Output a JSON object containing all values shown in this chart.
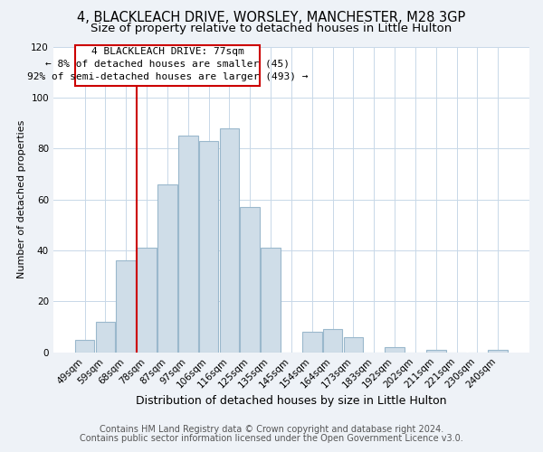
{
  "title": "4, BLACKLEACH DRIVE, WORSLEY, MANCHESTER, M28 3GP",
  "subtitle": "Size of property relative to detached houses in Little Hulton",
  "xlabel": "Distribution of detached houses by size in Little Hulton",
  "ylabel": "Number of detached properties",
  "footer_line1": "Contains HM Land Registry data © Crown copyright and database right 2024.",
  "footer_line2": "Contains public sector information licensed under the Open Government Licence v3.0.",
  "bar_labels": [
    "49sqm",
    "59sqm",
    "68sqm",
    "78sqm",
    "87sqm",
    "97sqm",
    "106sqm",
    "116sqm",
    "125sqm",
    "135sqm",
    "145sqm",
    "154sqm",
    "164sqm",
    "173sqm",
    "183sqm",
    "192sqm",
    "202sqm",
    "211sqm",
    "221sqm",
    "230sqm",
    "240sqm"
  ],
  "bar_values": [
    5,
    12,
    36,
    41,
    66,
    85,
    83,
    88,
    57,
    41,
    0,
    8,
    9,
    6,
    0,
    2,
    0,
    1,
    0,
    0,
    1
  ],
  "bar_color": "#cfdde8",
  "bar_edge_color": "#9ab8cc",
  "vline_index": 3,
  "vline_color": "#cc0000",
  "annotation_line1": "4 BLACKLEACH DRIVE: 77sqm",
  "annotation_line2": "← 8% of detached houses are smaller (45)",
  "annotation_line3": "92% of semi-detached houses are larger (493) →",
  "ylim": [
    0,
    120
  ],
  "yticks": [
    0,
    20,
    40,
    60,
    80,
    100,
    120
  ],
  "background_color": "#eef2f7",
  "plot_bg_color": "#ffffff",
  "title_fontsize": 10.5,
  "subtitle_fontsize": 9.5,
  "xlabel_fontsize": 9,
  "ylabel_fontsize": 8,
  "tick_fontsize": 7.5,
  "annotation_fontsize": 8,
  "footer_fontsize": 7
}
